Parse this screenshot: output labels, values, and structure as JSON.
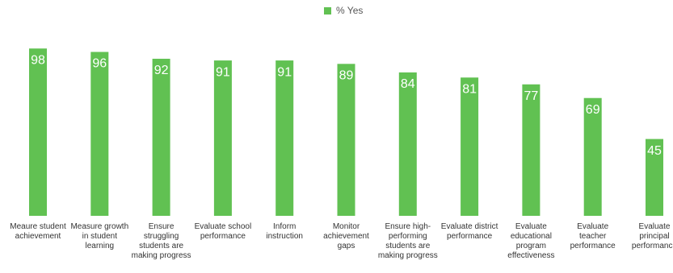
{
  "chart_data": {
    "type": "bar",
    "legend": "% Yes",
    "color": "#61c152",
    "categories": [
      "Meaure student achievement",
      "Measure growth in student learning",
      "Ensure struggling students are making progress",
      "Evaluate school performance",
      "Inform instruction",
      "Monitor achievement gaps",
      "Ensure high-performing students are making progress",
      "Evaluate district performance",
      "Evaluate educational program effectiveness",
      "Evaluate teacher performance",
      "Evaluate principal performance"
    ],
    "values": [
      98,
      96,
      92,
      91,
      91,
      89,
      84,
      81,
      77,
      69,
      45
    ]
  }
}
